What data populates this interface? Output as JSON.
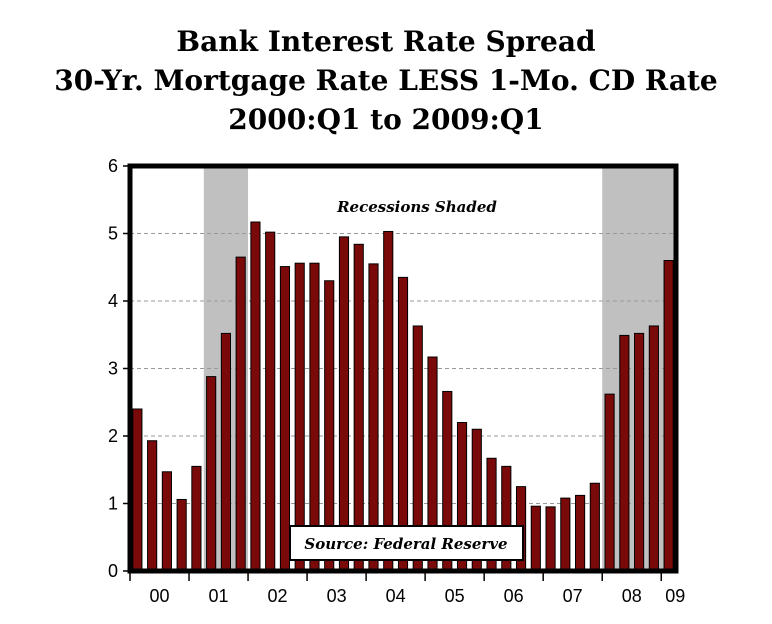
{
  "chart_data": {
    "type": "bar",
    "title": [
      "Bank Interest Rate Spread",
      "30-Yr. Mortgage Rate LESS 1-Mo. CD Rate",
      "2000:Q1 to 2009:Q1"
    ],
    "xlabel": "",
    "ylabel": "",
    "ylim": [
      0,
      6
    ],
    "yticks": [
      "0",
      "1",
      "2",
      "3",
      "4",
      "5",
      "6"
    ],
    "x_tick_labels": [
      "00",
      "01",
      "02",
      "03",
      "04",
      "05",
      "06",
      "07",
      "08",
      "09"
    ],
    "categories": [
      "2000:Q1",
      "2000:Q2",
      "2000:Q3",
      "2000:Q4",
      "2001:Q1",
      "2001:Q2",
      "2001:Q3",
      "2001:Q4",
      "2002:Q1",
      "2002:Q2",
      "2002:Q3",
      "2002:Q4",
      "2003:Q1",
      "2003:Q2",
      "2003:Q3",
      "2003:Q4",
      "2004:Q1",
      "2004:Q2",
      "2004:Q3",
      "2004:Q4",
      "2005:Q1",
      "2005:Q2",
      "2005:Q3",
      "2005:Q4",
      "2006:Q1",
      "2006:Q2",
      "2006:Q3",
      "2006:Q4",
      "2007:Q1",
      "2007:Q2",
      "2007:Q3",
      "2007:Q4",
      "2008:Q1",
      "2008:Q2",
      "2008:Q3",
      "2008:Q4",
      "2009:Q1"
    ],
    "values": [
      2.4,
      1.93,
      1.47,
      1.06,
      1.55,
      2.88,
      3.52,
      4.65,
      5.17,
      5.02,
      4.51,
      4.56,
      4.56,
      4.3,
      4.95,
      4.84,
      4.55,
      5.03,
      4.35,
      3.63,
      3.17,
      2.66,
      2.2,
      2.1,
      1.67,
      1.55,
      1.25,
      0.96,
      0.95,
      1.08,
      1.12,
      1.3,
      2.62,
      3.49,
      3.52,
      3.63,
      4.6
    ],
    "recessions": [
      {
        "start": "2001:Q2",
        "end": "2001:Q4"
      },
      {
        "start": "2008:Q1",
        "end": "2009:Q1"
      }
    ],
    "annotations": [
      "Recessions Shaded",
      "Source: Federal Reserve"
    ],
    "grid": "horizontal dashed",
    "colors": {
      "bar": "#7a0a0a",
      "bar_outline": "#000000",
      "recession": "#c0c0c0",
      "grid": "#9a9a9a"
    }
  }
}
